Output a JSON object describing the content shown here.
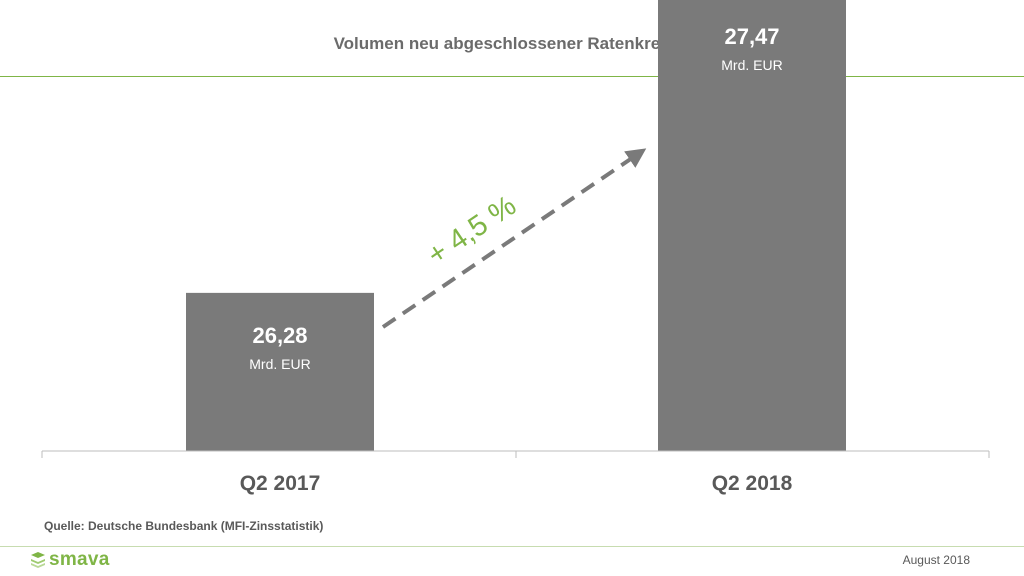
{
  "chart_data": {
    "type": "bar",
    "title": "Volumen neu abgeschlossener Ratenkredite",
    "categories": [
      "Q2 2017",
      "Q2 2018"
    ],
    "values": [
      26.28,
      27.47
    ],
    "value_labels": [
      "26,28",
      "27,47"
    ],
    "unit_label": "Mrd. EUR",
    "annotation": "+ 4,5 %",
    "bar_color": "#7a7a7a",
    "accent_color": "#7fb546",
    "arrow_color": "#7a7a7a"
  },
  "footer": {
    "source": "Quelle: Deutsche Bundesbank (MFI-Zinsstatistik)",
    "date": "August 2018",
    "logo_text": "smava",
    "logo_icon": "smava-stack-icon"
  }
}
